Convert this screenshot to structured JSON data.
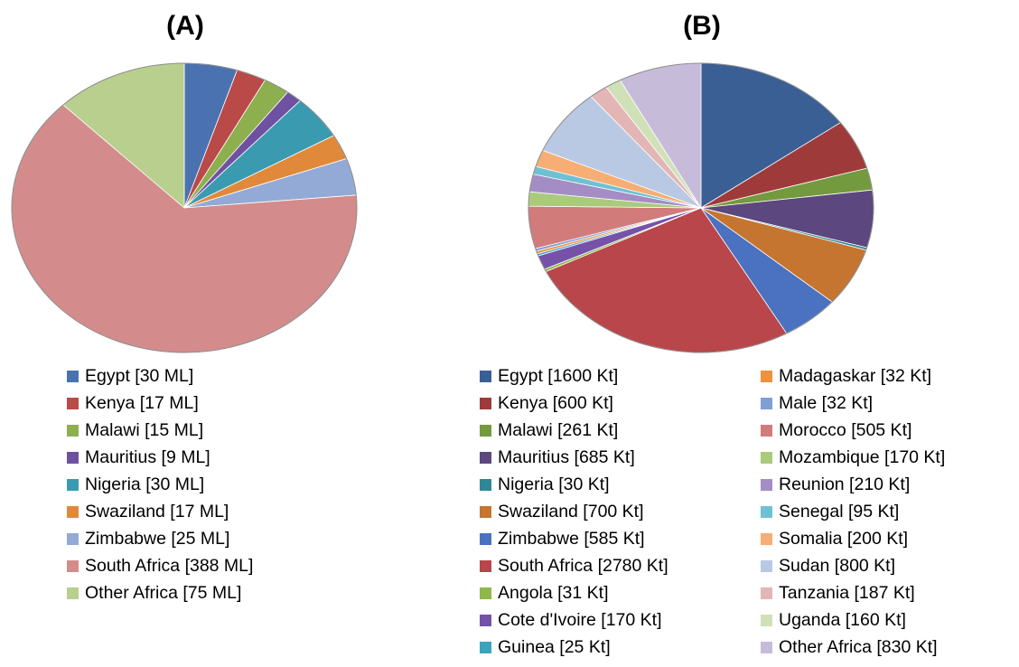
{
  "chart_data": [
    {
      "type": "pie",
      "title": "(A)",
      "slices": [
        {
          "label": "Egypt [30 ML]",
          "value": 30,
          "color": "#4A72B0"
        },
        {
          "label": "Kenya [17 ML]",
          "value": 17,
          "color": "#B94A48"
        },
        {
          "label": "Malawi [15 ML]",
          "value": 15,
          "color": "#8DAF4E"
        },
        {
          "label": "Mauritius [9 ML]",
          "value": 9,
          "color": "#6E52A1"
        },
        {
          "label": "Nigeria [30 ML]",
          "value": 30,
          "color": "#3A9BB0"
        },
        {
          "label": "Swaziland [17 ML]",
          "value": 17,
          "color": "#E0893A"
        },
        {
          "label": "Zimbabwe [25 ML]",
          "value": 25,
          "color": "#93A9D6"
        },
        {
          "label": "South Africa [388 ML]",
          "value": 388,
          "color": "#D38C8B"
        },
        {
          "label": "Other Africa [75 ML]",
          "value": 75,
          "color": "#B8CF8E"
        }
      ]
    },
    {
      "type": "pie",
      "title": "(B)",
      "slices": [
        {
          "label": "Egypt [1600 Kt]",
          "value": 1600,
          "color": "#3A5F95"
        },
        {
          "label": "Kenya [600 Kt]",
          "value": 600,
          "color": "#9E3B3A"
        },
        {
          "label": "Malawi [261 Kt]",
          "value": 261,
          "color": "#739A3E"
        },
        {
          "label": "Mauritius [685 Kt]",
          "value": 685,
          "color": "#5C477E"
        },
        {
          "label": "Nigeria [30 Kt]",
          "value": 30,
          "color": "#2F8796"
        },
        {
          "label": "Swaziland [700 Kt]",
          "value": 700,
          "color": "#C5752F"
        },
        {
          "label": "Zimbabwe [585 Kt]",
          "value": 585,
          "color": "#4A72C0"
        },
        {
          "label": "South Africa [2780 Kt]",
          "value": 2780,
          "color": "#B8464A"
        },
        {
          "label": "Angola [31 Kt]",
          "value": 31,
          "color": "#8DB84A"
        },
        {
          "label": "Cote d'Ivoire [170 Kt]",
          "value": 170,
          "color": "#7552A8"
        },
        {
          "label": "Guinea [25 Kt]",
          "value": 25,
          "color": "#3AA3BE"
        },
        {
          "label": "Madagaskar [32 Kt]",
          "value": 32,
          "color": "#F0913E"
        },
        {
          "label": "Male [32 Kt]",
          "value": 32,
          "color": "#7F9ED6"
        },
        {
          "label": "Morocco [505 Kt]",
          "value": 505,
          "color": "#D27B7B"
        },
        {
          "label": "Mozambique [170 Kt]",
          "value": 170,
          "color": "#A9CB7B"
        },
        {
          "label": "Reunion [210 Kt]",
          "value": 210,
          "color": "#A48DC4"
        },
        {
          "label": "Senegal [95 Kt]",
          "value": 95,
          "color": "#6EC1D3"
        },
        {
          "label": "Somalia [200 Kt]",
          "value": 200,
          "color": "#F6AE74"
        },
        {
          "label": "Sudan [800 Kt]",
          "value": 800,
          "color": "#B9C9E3"
        },
        {
          "label": "Tanzania [187 Kt]",
          "value": 187,
          "color": "#E3B5B5"
        },
        {
          "label": "Uganda [160 Kt]",
          "value": 160,
          "color": "#D0E1B8"
        },
        {
          "label": "Other Africa [830 Kt]",
          "value": 830,
          "color": "#C6BCD9"
        }
      ]
    }
  ]
}
